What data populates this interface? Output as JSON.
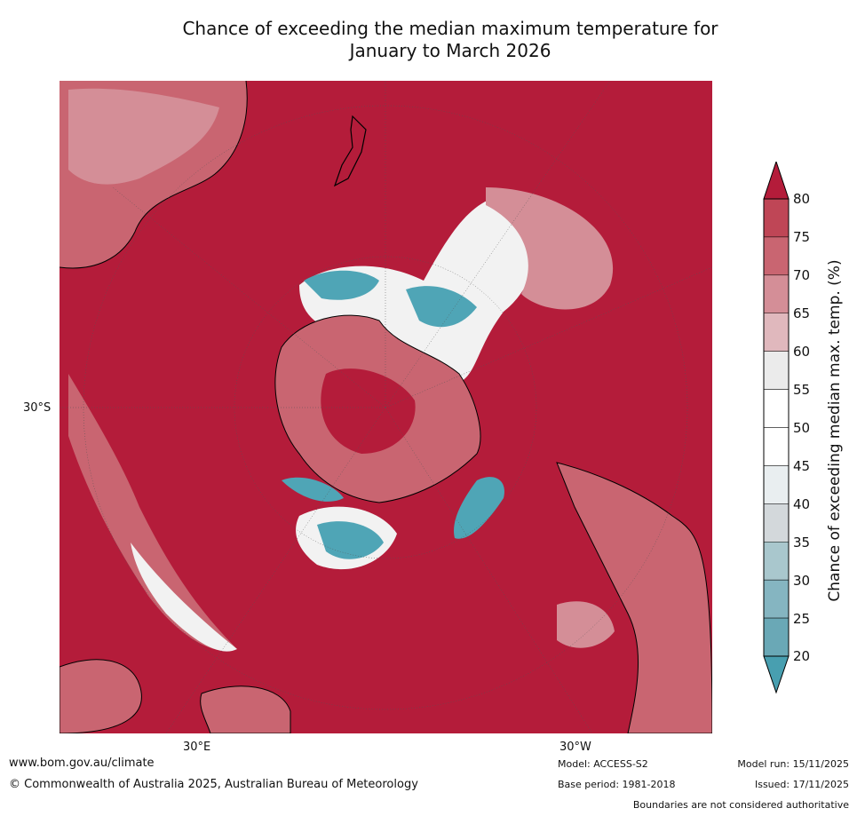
{
  "title_line1": "Chance of exceeding the median maximum temperature for",
  "title_line2": "January to March 2026",
  "lat_label": "30°S",
  "lon_label_east": "30°E",
  "lon_label_west": "30°W",
  "colorbar": {
    "label": "Chance of exceeding median max. temp. (%)",
    "ticks": [
      "80",
      "75",
      "70",
      "65",
      "60",
      "55",
      "50",
      "45",
      "40",
      "35",
      "30",
      "25",
      "20"
    ],
    "colors": [
      "#b41c3a",
      "#bf4656",
      "#c96571",
      "#d48e97",
      "#e0b8bd",
      "#ebebeb",
      "#ffffff",
      "#ffffff",
      "#e9eef0",
      "#d3d8db",
      "#a9c7cd",
      "#85b5c1",
      "#6aa8b6",
      "#489fb0"
    ]
  },
  "map": {
    "background_color": "#b41c3a",
    "land_color": "#c14d5d",
    "warm_light": "#d48e97",
    "neutral": "#f2f2f2",
    "cool": "#4fa5b6"
  },
  "footer": {
    "site": "www.bom.gov.au/climate",
    "copyright": "© Commonwealth of Australia 2025, Australian Bureau of Meteorology",
    "model": "Model: ACCESS-S2",
    "base_period": "Base period: 1981-2018",
    "model_run": "Model run: 15/11/2025",
    "issued": "Issued: 17/11/2025",
    "disclaimer": "Boundaries are not considered authoritative"
  }
}
